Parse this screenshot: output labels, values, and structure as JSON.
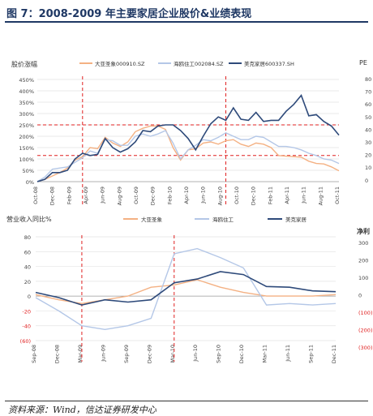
{
  "figure_title": "图 7：2008-2009 年主要家居企业股价&业绩表现",
  "source": "资料来源：Wind，信达证券研发中心",
  "colors": {
    "dayazhenxiang": "#f4b183",
    "haiouzhugong": "#b4c7e7",
    "meikejiaju": "#2e4a7a",
    "reference": "#e02020"
  },
  "chart_data": [
    {
      "type": "line",
      "title": "股价涨幅",
      "ylim": [
        0,
        450
      ],
      "yticks": [
        "0%",
        "50%",
        "100%",
        "150%",
        "200%",
        "250%",
        "300%",
        "350%",
        "400%",
        "450%"
      ],
      "ytick_values": [
        0,
        50,
        100,
        150,
        200,
        250,
        300,
        350,
        400,
        450
      ],
      "x_tick_labels": [
        "Oct-08",
        "Dec-08",
        "Feb-09",
        "Apr-09",
        "Jun-09",
        "Aug-09",
        "Oct-09",
        "Dec-09",
        "Feb-10",
        "Apr-10",
        "Jun-10",
        "Aug-10",
        "Oct-10",
        "Dec-10",
        "Feb-11",
        "Apr-11",
        "Jun-11",
        "Aug-11",
        "Oct-11"
      ],
      "grid": true,
      "legend_position": "top",
      "reference_lines": {
        "horizontal": [
          250,
          115
        ],
        "vertical_at_point": [
          6,
          25
        ]
      },
      "series": [
        {
          "name": "大亚圣象000910.SZ",
          "color": "#f4b183",
          "values": [
            0,
            10,
            25,
            40,
            60,
            95,
            110,
            150,
            145,
            195,
            170,
            155,
            175,
            220,
            235,
            245,
            245,
            230,
            150,
            95,
            140,
            145,
            170,
            175,
            165,
            180,
            185,
            165,
            155,
            170,
            165,
            150,
            115,
            112,
            110,
            108,
            90,
            80,
            78,
            65,
            48
          ]
        },
        {
          "name": "海鸥住工002084.SZ",
          "color": "#b4c7e7",
          "values": [
            0,
            20,
            55,
            60,
            65,
            85,
            105,
            135,
            125,
            185,
            180,
            160,
            160,
            200,
            210,
            200,
            210,
            225,
            170,
            100,
            140,
            160,
            185,
            180,
            195,
            215,
            200,
            185,
            185,
            200,
            195,
            175,
            155,
            155,
            150,
            140,
            125,
            115,
            100,
            95,
            80
          ]
        },
        {
          "name": "美克家居600337.SH",
          "color": "#2e4a7a",
          "values": [
            0,
            10,
            40,
            40,
            50,
            100,
            125,
            115,
            120,
            190,
            150,
            130,
            145,
            175,
            225,
            220,
            245,
            250,
            250,
            225,
            190,
            140,
            200,
            255,
            285,
            270,
            325,
            275,
            270,
            305,
            265,
            270,
            270,
            310,
            340,
            380,
            290,
            295,
            265,
            245,
            205
          ]
        }
      ]
    },
    {
      "type": "line",
      "title": "营业收入同比%",
      "ylim": [
        -60,
        80
      ],
      "yticks": [
        "80",
        "60",
        "40",
        "20",
        "0",
        "-20",
        "-40",
        "(60)"
      ],
      "ytick_values": [
        80,
        60,
        40,
        20,
        0,
        -20,
        -40,
        -60
      ],
      "x_tick_labels": [
        "Sep-08",
        "Dec-08",
        "Mar-09",
        "Jun-09",
        "Sep-09",
        "Dec-09",
        "Mar-10",
        "Jun-10",
        "Sep-10",
        "Dec-10",
        "Mar-11",
        "Jun-11",
        "Sep-11",
        "Dec-11"
      ],
      "grid": true,
      "legend_position": "top",
      "reference_lines": {
        "vertical_at_index": [
          2,
          6
        ]
      },
      "series": [
        {
          "name": "大亚圣象",
          "color": "#f4b183",
          "values": [
            2,
            -5,
            -10,
            -5,
            0,
            12,
            15,
            22,
            12,
            5,
            0,
            0,
            0,
            2
          ]
        },
        {
          "name": "海鸥住工",
          "color": "#b4c7e7",
          "values": [
            -2,
            -20,
            -40,
            -45,
            -40,
            -30,
            57,
            64,
            52,
            38,
            -12,
            -10,
            -12,
            -10
          ]
        },
        {
          "name": "美克家居",
          "color": "#2e4a7a",
          "values": [
            5,
            -2,
            -12,
            -5,
            -8,
            -5,
            18,
            23,
            33,
            29,
            13,
            12,
            7,
            6
          ]
        }
      ]
    }
  ],
  "right_partial": {
    "top_label": "PE",
    "top_ticks": [
      "80",
      "70",
      "60",
      "50",
      "40",
      "30",
      "20",
      "10",
      "0"
    ],
    "bottom_label": "净利",
    "bottom_ticks": [
      "300",
      "200",
      "100",
      "0",
      "(100)",
      "(200)",
      "(300)"
    ]
  }
}
